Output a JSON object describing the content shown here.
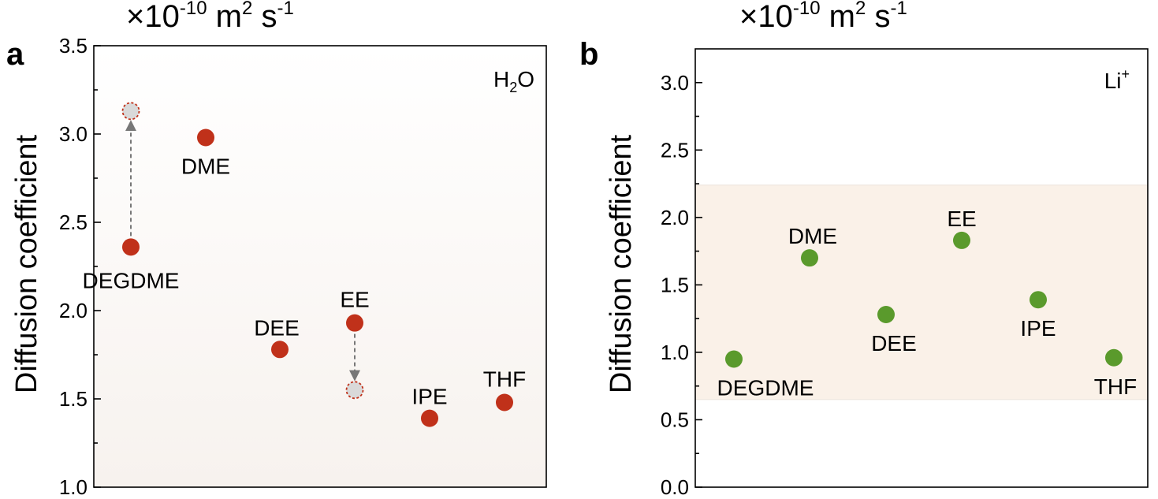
{
  "chart_data": [
    {
      "type": "scatter",
      "panel": "a",
      "unit_label": {
        "base": "×10",
        "exp": "-10",
        "unit": " m",
        "unit_exp": "2",
        "unit2": " s",
        "unit2_exp": "-1"
      },
      "ylabel": "Diffusion coefficient",
      "species_label": {
        "main": "H",
        "sub": "2",
        "tail": "O"
      },
      "ylim": [
        1.0,
        3.5
      ],
      "yticks": [
        1.0,
        1.5,
        2.0,
        2.5,
        3.0,
        3.5
      ],
      "ytick_labels": [
        "1.0",
        "1.5",
        "2.0",
        "2.5",
        "3.0",
        "3.5"
      ],
      "grid": false,
      "point_color": "#c0311a",
      "ghost_fill": "#d9d9d9",
      "background_gradient": [
        "#ffffff",
        "#f7f2ee"
      ],
      "categories": [
        "DEGDME",
        "DME",
        "DEE",
        "EE",
        "IPE",
        "THF"
      ],
      "values": [
        2.36,
        2.98,
        1.78,
        1.93,
        1.39,
        1.48
      ],
      "shifted_points": [
        {
          "category": "DEGDME",
          "from": 2.36,
          "to": 3.13
        },
        {
          "category": "EE",
          "from": 1.93,
          "to": 1.55
        }
      ]
    },
    {
      "type": "scatter",
      "panel": "b",
      "unit_label": {
        "base": "×10",
        "exp": "-10",
        "unit": " m",
        "unit_exp": "2",
        "unit2": " s",
        "unit2_exp": "-1"
      },
      "ylabel": "Diffusion coefficient",
      "species_label": {
        "main": "Li",
        "sup": "+"
      },
      "ylim": [
        0.0,
        3.25
      ],
      "yticks": [
        0.0,
        0.5,
        1.0,
        1.5,
        2.0,
        2.5,
        3.0
      ],
      "ytick_labels": [
        "0.0",
        "0.5",
        "1.0",
        "1.5",
        "2.0",
        "2.5",
        "3.0"
      ],
      "grid": false,
      "point_color": "#5a9a2c",
      "band": {
        "from": 0.65,
        "to": 2.24,
        "color": "#faf1e8"
      },
      "categories": [
        "DEGDME",
        "DME",
        "DEE",
        "EE",
        "IPE",
        "THF"
      ],
      "values": [
        0.95,
        1.7,
        1.28,
        1.83,
        1.39,
        0.96
      ]
    }
  ]
}
